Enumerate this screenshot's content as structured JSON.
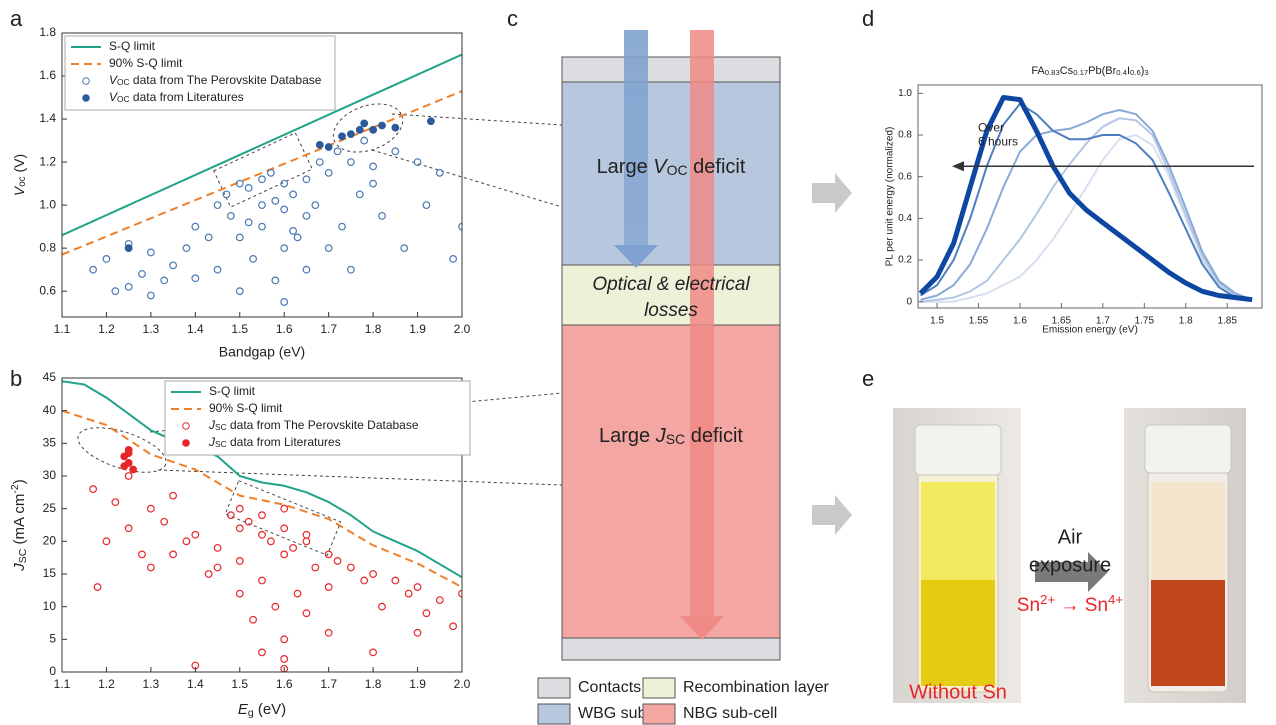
{
  "panel_labels": [
    "a",
    "b",
    "c",
    "d",
    "e"
  ],
  "chart_data": [
    {
      "type": "scatter",
      "xlabel": "Bandgap (eV)",
      "ylabel": [
        {
          "i": "V"
        },
        {
          "sub": "oc"
        },
        " (V)"
      ],
      "xlim": [
        1.1,
        2.0
      ],
      "ylim": [
        0.48,
        1.8
      ],
      "xticks": [
        1.1,
        1.2,
        1.3,
        1.4,
        1.5,
        1.6,
        1.7,
        1.8,
        1.9,
        {
          "value": 2,
          "label": "2.0"
        }
      ],
      "yticks": [
        0.6,
        0.8,
        {
          "value": 1,
          "label": "1.0"
        },
        1.2,
        1.4,
        1.6,
        1.8
      ],
      "legend": "upper left",
      "series": [
        {
          "name": "S-Q limit",
          "type": "line",
          "color": "#1fa38a",
          "x": [
            1.1,
            2.0
          ],
          "values": [
            0.86,
            1.7
          ]
        },
        {
          "name": "90% S-Q limit",
          "type": "line",
          "line_style": "dashed",
          "color": "#f07f2a",
          "x": [
            1.1,
            2.0
          ],
          "values": [
            0.77,
            1.53
          ]
        },
        {
          "name": [
            {
              "i": "V"
            },
            {
              "sub": "OC"
            },
            " data from The Perovskite Database"
          ],
          "marker": "open",
          "color": "#4a78b5",
          "x": [
            1.17,
            1.2,
            1.22,
            1.25,
            1.28,
            1.3,
            1.33,
            1.35,
            1.38,
            1.4,
            1.43,
            1.45,
            1.47,
            1.48,
            1.5,
            1.5,
            1.52,
            1.53,
            1.55,
            1.55,
            1.57,
            1.58,
            1.6,
            1.6,
            1.6,
            1.62,
            1.63,
            1.65,
            1.65,
            1.67,
            1.68,
            1.7,
            1.72,
            1.73,
            1.75,
            1.77,
            1.78,
            1.8,
            1.82,
            1.85,
            1.87,
            1.9,
            1.92,
            1.95,
            1.98,
            2.0,
            1.55,
            1.6,
            1.5,
            1.45,
            1.25,
            1.3,
            1.4,
            1.7,
            1.75,
            1.8,
            1.65,
            1.58,
            1.62,
            1.52
          ],
          "values": [
            0.7,
            0.75,
            0.6,
            0.82,
            0.68,
            0.78,
            0.65,
            0.72,
            0.8,
            0.9,
            0.85,
            1.0,
            1.05,
            0.95,
            1.1,
            0.6,
            1.08,
            0.75,
            1.12,
            0.9,
            1.15,
            0.65,
            1.1,
            0.98,
            0.55,
            1.05,
            0.85,
            1.12,
            0.7,
            1.0,
            1.2,
            1.15,
            1.25,
            0.9,
            1.2,
            1.05,
            1.3,
            1.1,
            0.95,
            1.25,
            0.8,
            1.2,
            1.0,
            1.15,
            0.75,
            0.9,
            1.0,
            0.8,
            0.85,
            0.7,
            0.62,
            0.58,
            0.66,
            0.8,
            0.7,
            1.18,
            0.95,
            1.02,
            0.88,
            0.92
          ]
        },
        {
          "name": [
            {
              "i": "V"
            },
            {
              "sub": "OC"
            },
            " data from Literatures"
          ],
          "marker": "filled",
          "color": "#2b5a9b",
          "x": [
            1.25,
            1.68,
            1.7,
            1.73,
            1.75,
            1.77,
            1.78,
            1.8,
            1.82,
            1.85,
            1.93
          ],
          "values": [
            0.8,
            1.28,
            1.27,
            1.32,
            1.33,
            1.35,
            1.38,
            1.35,
            1.37,
            1.36,
            1.39
          ]
        }
      ]
    },
    {
      "type": "scatter",
      "xlabel": [
        {
          "i": "E"
        },
        {
          "sub": "g"
        },
        " (eV)"
      ],
      "ylabel": [
        {
          "i": "J"
        },
        {
          "sub": "SC"
        },
        " (mA cm",
        {
          "sup": "-2"
        },
        ")"
      ],
      "xlim": [
        1.1,
        2.0
      ],
      "ylim": [
        0,
        45
      ],
      "xticks": [
        1.1,
        1.2,
        1.3,
        1.4,
        1.5,
        1.6,
        1.7,
        1.8,
        1.9,
        {
          "value": 2,
          "label": "2.0"
        }
      ],
      "yticks": [
        0,
        5,
        10,
        15,
        20,
        25,
        30,
        35,
        40,
        45
      ],
      "legend": "upper right",
      "series": [
        {
          "name": "S-Q limit",
          "type": "line",
          "color": "#1fa38a",
          "x": [
            1.1,
            1.15,
            1.2,
            1.25,
            1.3,
            1.35,
            1.4,
            1.45,
            1.5,
            1.55,
            1.6,
            1.65,
            1.7,
            1.75,
            1.8,
            1.85,
            1.9,
            1.95,
            2.0
          ],
          "values": [
            44.5,
            44,
            42,
            39.5,
            37,
            35.5,
            34.5,
            33,
            30,
            29,
            28.5,
            27.5,
            26,
            24,
            21.5,
            20,
            18.5,
            16.5,
            14.5
          ]
        },
        {
          "name": "90% S-Q limit",
          "type": "line",
          "line_style": "dashed",
          "color": "#f07f2a",
          "x": [
            1.1,
            1.2,
            1.3,
            1.4,
            1.5,
            1.6,
            1.7,
            1.8,
            1.9,
            2.0
          ],
          "values": [
            40,
            37.8,
            33.3,
            31,
            27,
            25.6,
            23.4,
            19.4,
            16.6,
            13
          ]
        },
        {
          "name": [
            {
              "i": "J"
            },
            {
              "sub": "SC"
            },
            " data from The Perovskite Database"
          ],
          "marker": "open",
          "color": "#e8262a",
          "x": [
            1.17,
            1.18,
            1.2,
            1.22,
            1.25,
            1.25,
            1.28,
            1.3,
            1.3,
            1.33,
            1.35,
            1.38,
            1.4,
            1.4,
            1.43,
            1.45,
            1.48,
            1.5,
            1.5,
            1.5,
            1.52,
            1.53,
            1.55,
            1.55,
            1.55,
            1.57,
            1.58,
            1.6,
            1.6,
            1.6,
            1.6,
            1.62,
            1.63,
            1.65,
            1.65,
            1.67,
            1.7,
            1.7,
            1.72,
            1.75,
            1.78,
            1.8,
            1.82,
            1.85,
            1.88,
            1.9,
            1.92,
            1.95,
            1.98,
            2.0,
            1.6,
            1.55,
            1.65,
            1.5,
            1.45,
            1.35,
            1.6,
            1.7,
            1.8,
            1.9
          ],
          "values": [
            28,
            13,
            20,
            26,
            30,
            22,
            18,
            25,
            16,
            23,
            27,
            20,
            21,
            1,
            15,
            19,
            24,
            22,
            12,
            17,
            23,
            8,
            21,
            14,
            3,
            20,
            10,
            22,
            18,
            5,
            0.5,
            19,
            12,
            21,
            9,
            16,
            18,
            6,
            17,
            16,
            14,
            15,
            10,
            14,
            12,
            13,
            9,
            11,
            7,
            12,
            25,
            24,
            20,
            25,
            16,
            18,
            2,
            13,
            3,
            6
          ]
        },
        {
          "name": [
            {
              "i": "J"
            },
            {
              "sub": "SC"
            },
            " data from Literatures"
          ],
          "marker": "filled",
          "color": "#e8262a",
          "x": [
            1.24,
            1.25,
            1.25,
            1.26,
            1.24,
            1.25
          ],
          "values": [
            33,
            32,
            33.5,
            31,
            31.5,
            34
          ]
        }
      ]
    },
    {
      "type": "line",
      "title": [
        "FA",
        {
          "sub": "0.83"
        },
        "Cs",
        {
          "sub": "0.17"
        },
        "Pb(Br",
        {
          "sub": "0.4"
        },
        "I",
        {
          "sub": "0.6"
        },
        ")",
        {
          "sub": "3"
        }
      ],
      "xlabel": "Emission energy (eV)",
      "ylabel": "PL per unit energy (normalized)",
      "xlim": [
        1.477,
        1.892
      ],
      "ylim": [
        -0.03,
        1.04
      ],
      "xticks": [
        1.5,
        1.55,
        1.6,
        1.65,
        1.7,
        1.75,
        1.8,
        1.85
      ],
      "yticks": [
        0,
        0.2,
        0.4,
        0.6,
        0.8,
        {
          "value": 1,
          "label": "1.0"
        }
      ],
      "annotation": [
        "Over",
        "6 hours"
      ],
      "x": [
        1.48,
        1.5,
        1.52,
        1.54,
        1.56,
        1.58,
        1.6,
        1.62,
        1.64,
        1.66,
        1.68,
        1.7,
        1.72,
        1.74,
        1.76,
        1.78,
        1.8,
        1.82,
        1.84,
        1.86,
        1.88
      ],
      "series": [
        {
          "color": "#d6e0ef",
          "values": [
            0,
            0,
            0,
            0.02,
            0.04,
            0.08,
            0.12,
            0.2,
            0.3,
            0.42,
            0.55,
            0.68,
            0.78,
            0.8,
            0.75,
            0.6,
            0.4,
            0.2,
            0.08,
            0.03,
            0.01
          ]
        },
        {
          "color": "#b3c7e4",
          "values": [
            0,
            0.01,
            0.02,
            0.05,
            0.1,
            0.2,
            0.3,
            0.42,
            0.55,
            0.66,
            0.76,
            0.84,
            0.88,
            0.87,
            0.8,
            0.62,
            0.42,
            0.22,
            0.09,
            0.03,
            0.01
          ]
        },
        {
          "color": "#8aa9d6",
          "values": [
            0.01,
            0.03,
            0.08,
            0.18,
            0.35,
            0.55,
            0.72,
            0.8,
            0.82,
            0.83,
            0.86,
            0.9,
            0.92,
            0.9,
            0.82,
            0.65,
            0.45,
            0.24,
            0.1,
            0.04,
            0.01
          ]
        },
        {
          "color": "#4f7fc0",
          "values": [
            0.03,
            0.08,
            0.2,
            0.4,
            0.65,
            0.85,
            0.95,
            0.9,
            0.82,
            0.78,
            0.78,
            0.8,
            0.8,
            0.76,
            0.68,
            0.52,
            0.35,
            0.18,
            0.07,
            0.02,
            0.01
          ]
        },
        {
          "color": "#0d47a1",
          "line_width": 5,
          "values": [
            0.04,
            0.12,
            0.28,
            0.55,
            0.82,
            0.98,
            0.97,
            0.82,
            0.65,
            0.52,
            0.44,
            0.38,
            0.32,
            0.26,
            0.2,
            0.14,
            0.09,
            0.05,
            0.03,
            0.02,
            0.01
          ]
        }
      ]
    }
  ],
  "diagram": {
    "wbg_text": [
      "Large ",
      {
        "i": "V"
      },
      {
        "sub": "OC"
      },
      " deficit"
    ],
    "losses": [
      "Optical & electrical",
      "losses"
    ],
    "nbg_text": [
      "Large ",
      {
        "i": "J"
      },
      {
        "sub": "SC"
      },
      " deficit"
    ],
    "legend": [
      "Contacts",
      "Recombination layer",
      "WBG sub-cell",
      "NBG sub-cell"
    ]
  },
  "photo": {
    "arrow_text": [
      "Air",
      "exposure"
    ],
    "reaction": [
      "Sn",
      {
        "sup": "2+"
      },
      " → Sn",
      {
        "sup": "4+"
      }
    ],
    "caption": "Without Sn"
  }
}
